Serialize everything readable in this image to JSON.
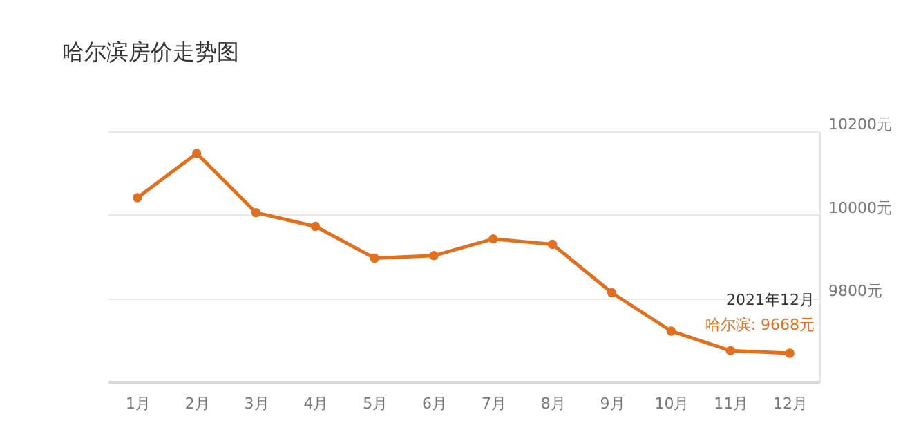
{
  "chart_data": {
    "type": "line",
    "title": "哈尔滨房价走势图",
    "categories": [
      "1月",
      "2月",
      "3月",
      "4月",
      "5月",
      "6月",
      "7月",
      "8月",
      "9月",
      "10月",
      "11月",
      "12月"
    ],
    "series": [
      {
        "color": "#e07020",
        "values": [
          10041,
          10147,
          10005,
          9972,
          9896,
          9902,
          9942,
          9929,
          9813,
          9721,
          9674,
          9668
        ]
      }
    ],
    "ylim": [
      9600,
      10200
    ],
    "yticks": [
      {
        "value": 9600,
        "label": null
      },
      {
        "value": 9800,
        "label": "9800元"
      },
      {
        "value": 10000,
        "label": "10000元"
      },
      {
        "value": 10200,
        "label": "10200元"
      }
    ],
    "grid": "y",
    "marker": "circle",
    "line_style": "solid",
    "annotations": [
      "2021年12月",
      {
        "text": "哈尔滨: 9668元",
        "x": "12月",
        "y": 9668
      }
    ]
  }
}
